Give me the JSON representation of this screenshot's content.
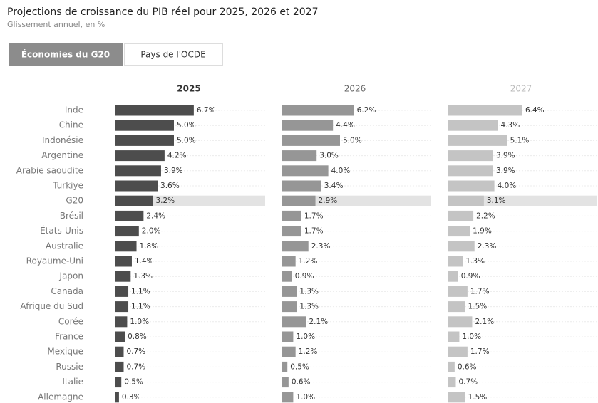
{
  "header": {
    "title": "Projections de croissance du PIB réel pour 2025, 2026 et 2027",
    "subtitle": "Glissement annuel, en %"
  },
  "tabs": [
    "Économies du G20",
    "Pays de l'OCDE"
  ],
  "chart_data": {
    "type": "bar",
    "highlight": "G20",
    "categories": [
      "Inde",
      "Chine",
      "Indonésie",
      "Argentine",
      "Arabie saoudite",
      "Turkiye",
      "G20",
      "Brésil",
      "États-Unis",
      "Australie",
      "Royaume-Uni",
      "Japon",
      "Canada",
      "Afrique du Sud",
      "Corée",
      "France",
      "Mexique",
      "Russie",
      "Italie",
      "Allemagne"
    ],
    "series": [
      {
        "name": "2025",
        "color": "#4d4d4d",
        "values": [
          6.7,
          5.0,
          5.0,
          4.2,
          3.9,
          3.6,
          3.2,
          2.4,
          2.0,
          1.8,
          1.4,
          1.3,
          1.1,
          1.1,
          1.0,
          0.8,
          0.7,
          0.7,
          0.5,
          0.3
        ],
        "value_labels": [
          "6.7%",
          "5.0%",
          "5.0%",
          "4.2%",
          "3.9%",
          "3.6%",
          "3.2%",
          "2.4%",
          "2.0%",
          "1.8%",
          "1.4%",
          "1.3%",
          "1.1%",
          "1.1%",
          "1.0%",
          "0.8%",
          "0.7%",
          "0.7%",
          "0.5%",
          "0.3%"
        ]
      },
      {
        "name": "2026",
        "color": "#969696",
        "values": [
          6.2,
          4.4,
          5.0,
          3.0,
          4.0,
          3.4,
          2.9,
          1.7,
          1.7,
          2.3,
          1.2,
          0.9,
          1.3,
          1.3,
          2.1,
          1.0,
          1.2,
          0.5,
          0.6,
          1.0
        ],
        "value_labels": [
          "6.2%",
          "4.4%",
          "5.0%",
          "3.0%",
          "4.0%",
          "3.4%",
          "2.9%",
          "1.7%",
          "1.7%",
          "2.3%",
          "1.2%",
          "0.9%",
          "1.3%",
          "1.3%",
          "2.1%",
          "1.0%",
          "1.2%",
          "0.5%",
          "0.6%",
          "1.0%"
        ]
      },
      {
        "name": "2027",
        "color": "#c4c4c4",
        "values": [
          6.4,
          4.3,
          5.1,
          3.9,
          3.9,
          4.0,
          3.1,
          2.2,
          1.9,
          2.3,
          1.3,
          0.9,
          1.7,
          1.5,
          2.1,
          1.0,
          1.7,
          0.6,
          0.7,
          1.5
        ],
        "value_labels": [
          "6.4%",
          "4.3%",
          "5.1%",
          "3.9%",
          "3.9%",
          "4.0%",
          "3.1%",
          "2.2%",
          "1.9%",
          "2.3%",
          "1.3%",
          "0.9%",
          "1.7%",
          "1.5%",
          "2.1%",
          "1.0%",
          "1.7%",
          "0.6%",
          "0.7%",
          "1.5%"
        ]
      }
    ]
  }
}
